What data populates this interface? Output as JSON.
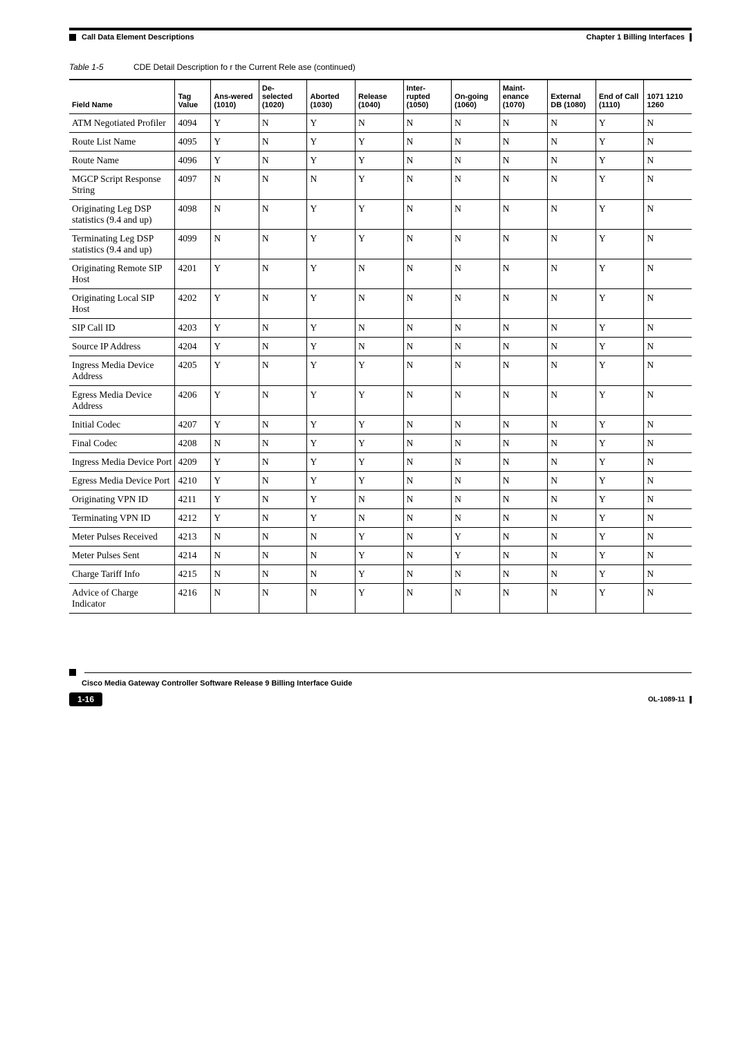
{
  "header": {
    "chapter": "Chapter 1    Billing Interfaces",
    "section": "Call Data Element Descriptions"
  },
  "caption": {
    "label": "Table 1-5",
    "text": "CDE Detail Description fo   r the Current Rele   ase (continued)"
  },
  "columns": [
    "Field Name",
    "Tag Value",
    "Ans-wered (1010)",
    "De-selected (1020)",
    "Aborted (1030)",
    "Release (1040)",
    "Inter-rupted (1050)",
    "On-going (1060)",
    "Maint-enance (1070)",
    "External DB (1080)",
    "End of Call (1110)",
    "1071 1210 1260"
  ],
  "rows": [
    [
      "ATM Negotiated Profiler",
      "4094",
      "Y",
      "N",
      "Y",
      "N",
      "N",
      "N",
      "N",
      "N",
      "Y",
      "N"
    ],
    [
      "Route List Name",
      "4095",
      "Y",
      "N",
      "Y",
      "Y",
      "N",
      "N",
      "N",
      "N",
      "Y",
      "N"
    ],
    [
      "Route Name",
      "4096",
      "Y",
      "N",
      "Y",
      "Y",
      "N",
      "N",
      "N",
      "N",
      "Y",
      "N"
    ],
    [
      "MGCP Script Response String",
      "4097",
      "N",
      "N",
      "N",
      "Y",
      "N",
      "N",
      "N",
      "N",
      "Y",
      "N"
    ],
    [
      "Originating Leg DSP statistics (9.4 and up)",
      "4098",
      "N",
      "N",
      "Y",
      "Y",
      "N",
      "N",
      "N",
      "N",
      "Y",
      "N"
    ],
    [
      "Terminating Leg DSP statistics (9.4 and up)",
      "4099",
      "N",
      "N",
      "Y",
      "Y",
      "N",
      "N",
      "N",
      "N",
      "Y",
      "N"
    ],
    [
      "Originating Remote SIP Host",
      "4201",
      "Y",
      "N",
      "Y",
      "N",
      "N",
      "N",
      "N",
      "N",
      "Y",
      "N"
    ],
    [
      "Originating Local SIP Host",
      "4202",
      "Y",
      "N",
      "Y",
      "N",
      "N",
      "N",
      "N",
      "N",
      "Y",
      "N"
    ],
    [
      "SIP Call ID",
      "4203",
      "Y",
      "N",
      "Y",
      "N",
      "N",
      "N",
      "N",
      "N",
      "Y",
      "N"
    ],
    [
      "Source IP Address",
      "4204",
      "Y",
      "N",
      "Y",
      "N",
      "N",
      "N",
      "N",
      "N",
      "Y",
      "N"
    ],
    [
      "Ingress Media Device Address",
      "4205",
      "Y",
      "N",
      "Y",
      "Y",
      "N",
      "N",
      "N",
      "N",
      "Y",
      "N"
    ],
    [
      "Egress Media Device Address",
      "4206",
      "Y",
      "N",
      "Y",
      "Y",
      "N",
      "N",
      "N",
      "N",
      "Y",
      "N"
    ],
    [
      "Initial Codec",
      "4207",
      "Y",
      "N",
      "Y",
      "Y",
      "N",
      "N",
      "N",
      "N",
      "Y",
      "N"
    ],
    [
      "Final Codec",
      "4208",
      "N",
      "N",
      "Y",
      "Y",
      "N",
      "N",
      "N",
      "N",
      "Y",
      "N"
    ],
    [
      "Ingress Media Device Port",
      "4209",
      "Y",
      "N",
      "Y",
      "Y",
      "N",
      "N",
      "N",
      "N",
      "Y",
      "N"
    ],
    [
      "Egress Media Device Port",
      "4210",
      "Y",
      "N",
      "Y",
      "Y",
      "N",
      "N",
      "N",
      "N",
      "Y",
      "N"
    ],
    [
      "Originating VPN ID",
      "4211",
      "Y",
      "N",
      "Y",
      "N",
      "N",
      "N",
      "N",
      "N",
      "Y",
      "N"
    ],
    [
      "Terminating VPN ID",
      "4212",
      "Y",
      "N",
      "Y",
      "N",
      "N",
      "N",
      "N",
      "N",
      "Y",
      "N"
    ],
    [
      "Meter Pulses Received",
      "4213",
      "N",
      "N",
      "N",
      "Y",
      "N",
      "Y",
      "N",
      "N",
      "Y",
      "N"
    ],
    [
      "Meter Pulses Sent",
      "4214",
      "N",
      "N",
      "N",
      "Y",
      "N",
      "Y",
      "N",
      "N",
      "Y",
      "N"
    ],
    [
      "Charge Tariff Info",
      "4215",
      "N",
      "N",
      "N",
      "Y",
      "N",
      "N",
      "N",
      "N",
      "Y",
      "N"
    ],
    [
      "Advice of Charge Indicator",
      "4216",
      "N",
      "N",
      "N",
      "Y",
      "N",
      "N",
      "N",
      "N",
      "Y",
      "N"
    ]
  ],
  "footer": {
    "title": "Cisco Media Gateway Controller Software Release 9 Billing Interface Guide",
    "page": "1-16",
    "docid": "OL-1089-11"
  }
}
